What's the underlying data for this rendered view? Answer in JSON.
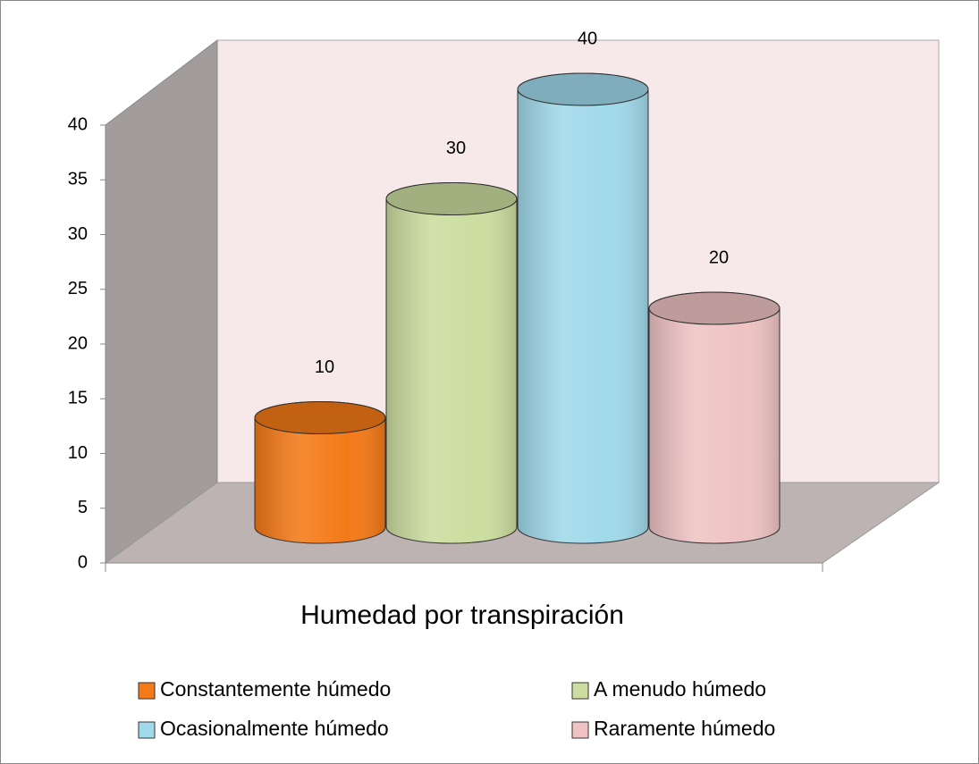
{
  "chart_data": {
    "type": "bar3d-cylinder",
    "x_label": "Humedad por transpiración",
    "categories": [
      null
    ],
    "series": [
      {
        "name": "Constantemente húmedo",
        "color": "#f47a18",
        "values": [
          10
        ]
      },
      {
        "name": "A menudo húmedo",
        "color": "#cbdd9f",
        "values": [
          30
        ]
      },
      {
        "name": "Ocasionalmente húmedo",
        "color": "#a0d9ea",
        "values": [
          40
        ]
      },
      {
        "name": "Raramente húmedo",
        "color": "#efc3c3",
        "values": [
          20
        ]
      }
    ],
    "ylim": [
      0,
      40
    ],
    "yticks": [
      0,
      5,
      10,
      15,
      20,
      25,
      30,
      35,
      40
    ],
    "grid": false,
    "legend": "bottom"
  }
}
